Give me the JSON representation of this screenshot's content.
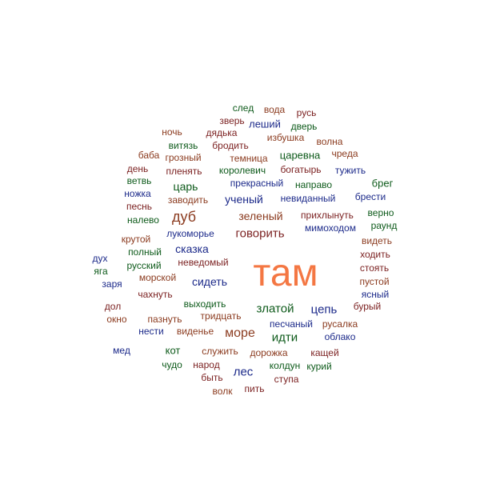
{
  "colors": {
    "orange": "#f47743",
    "darkred": "#7a1f1f",
    "green": "#0d5a1a",
    "navy": "#1c2a8a",
    "brown": "#8b3b1f"
  },
  "words": [
    {
      "text": "там",
      "color": "orange"
    },
    {
      "text": "след",
      "color": "green"
    },
    {
      "text": "вода",
      "color": "brown"
    },
    {
      "text": "русь",
      "color": "darkred"
    },
    {
      "text": "зверь",
      "color": "darkred"
    },
    {
      "text": "леший",
      "color": "navy"
    },
    {
      "text": "дверь",
      "color": "green"
    },
    {
      "text": "ночь",
      "color": "brown"
    },
    {
      "text": "дядька",
      "color": "darkred"
    },
    {
      "text": "избушка",
      "color": "brown"
    },
    {
      "text": "волна",
      "color": "brown"
    },
    {
      "text": "витязь",
      "color": "green"
    },
    {
      "text": "бродить",
      "color": "darkred"
    },
    {
      "text": "баба",
      "color": "brown"
    },
    {
      "text": "грозный",
      "color": "brown"
    },
    {
      "text": "темница",
      "color": "brown"
    },
    {
      "text": "царевна",
      "color": "green"
    },
    {
      "text": "чреда",
      "color": "brown"
    },
    {
      "text": "день",
      "color": "darkred"
    },
    {
      "text": "пленять",
      "color": "darkred"
    },
    {
      "text": "королевич",
      "color": "green"
    },
    {
      "text": "богатырь",
      "color": "darkred"
    },
    {
      "text": "тужить",
      "color": "navy"
    },
    {
      "text": "ветвь",
      "color": "green"
    },
    {
      "text": "царь",
      "color": "green"
    },
    {
      "text": "прекрасный",
      "color": "navy"
    },
    {
      "text": "направо",
      "color": "green"
    },
    {
      "text": "брег",
      "color": "green"
    },
    {
      "text": "ножка",
      "color": "navy"
    },
    {
      "text": "заводить",
      "color": "brown"
    },
    {
      "text": "ученый",
      "color": "navy"
    },
    {
      "text": "невиданный",
      "color": "navy"
    },
    {
      "text": "брести",
      "color": "navy"
    },
    {
      "text": "песнь",
      "color": "darkred"
    },
    {
      "text": "дуб",
      "color": "brown"
    },
    {
      "text": "зеленый",
      "color": "brown"
    },
    {
      "text": "прихлынуть",
      "color": "darkred"
    },
    {
      "text": "верно",
      "color": "green"
    },
    {
      "text": "налево",
      "color": "green"
    },
    {
      "text": "мимоходом",
      "color": "navy"
    },
    {
      "text": "раунд",
      "color": "green"
    },
    {
      "text": "лукоморье",
      "color": "navy"
    },
    {
      "text": "говорить",
      "color": "darkred"
    },
    {
      "text": "крутой",
      "color": "brown"
    },
    {
      "text": "видеть",
      "color": "brown"
    },
    {
      "text": "сказка",
      "color": "navy"
    },
    {
      "text": "ходить",
      "color": "darkred"
    },
    {
      "text": "полный",
      "color": "green"
    },
    {
      "text": "дух",
      "color": "navy"
    },
    {
      "text": "неведомый",
      "color": "darkred"
    },
    {
      "text": "стоять",
      "color": "darkred"
    },
    {
      "text": "яга",
      "color": "green"
    },
    {
      "text": "русский",
      "color": "green"
    },
    {
      "text": "пустой",
      "color": "brown"
    },
    {
      "text": "морской",
      "color": "brown"
    },
    {
      "text": "сидеть",
      "color": "navy"
    },
    {
      "text": "заря",
      "color": "navy"
    },
    {
      "text": "ясный",
      "color": "navy"
    },
    {
      "text": "чахнуть",
      "color": "darkred"
    },
    {
      "text": "выходить",
      "color": "green"
    },
    {
      "text": "дол",
      "color": "darkred"
    },
    {
      "text": "златой",
      "color": "green"
    },
    {
      "text": "цепь",
      "color": "navy"
    },
    {
      "text": "бурый",
      "color": "darkred"
    },
    {
      "text": "окно",
      "color": "brown"
    },
    {
      "text": "пазнуть",
      "color": "brown"
    },
    {
      "text": "тридцать",
      "color": "brown"
    },
    {
      "text": "песчаный",
      "color": "navy"
    },
    {
      "text": "русалка",
      "color": "brown"
    },
    {
      "text": "нести",
      "color": "navy"
    },
    {
      "text": "виденье",
      "color": "brown"
    },
    {
      "text": "море",
      "color": "brown"
    },
    {
      "text": "идти",
      "color": "green"
    },
    {
      "text": "облако",
      "color": "navy"
    },
    {
      "text": "мед",
      "color": "navy"
    },
    {
      "text": "кот",
      "color": "green"
    },
    {
      "text": "служить",
      "color": "brown"
    },
    {
      "text": "дорожка",
      "color": "brown"
    },
    {
      "text": "кащей",
      "color": "darkred"
    },
    {
      "text": "чудо",
      "color": "green"
    },
    {
      "text": "народ",
      "color": "darkred"
    },
    {
      "text": "лес",
      "color": "navy"
    },
    {
      "text": "колдун",
      "color": "green"
    },
    {
      "text": "курий",
      "color": "green"
    },
    {
      "text": "быть",
      "color": "darkred"
    },
    {
      "text": "ступа",
      "color": "darkred"
    },
    {
      "text": "волк",
      "color": "brown"
    },
    {
      "text": "пить",
      "color": "darkred"
    }
  ]
}
